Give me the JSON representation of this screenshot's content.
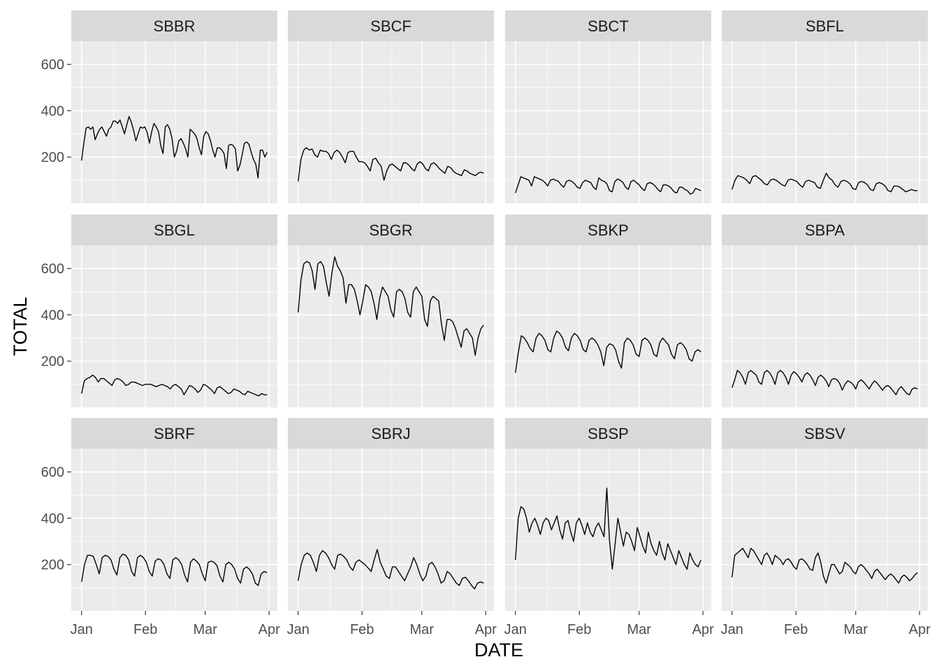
{
  "chart_data": {
    "type": "line",
    "facet_layout": "3 rows x 4 columns",
    "xlabel": "DATE",
    "ylabel": "TOTAL",
    "x_ticks": [
      {
        "date": "2020-01-01",
        "label": "Jan"
      },
      {
        "date": "2020-02-01",
        "label": "Feb"
      },
      {
        "date": "2020-03-01",
        "label": "Mar"
      },
      {
        "date": "2020-04-01",
        "label": "Apr"
      }
    ],
    "x_range": [
      "2019-12-27",
      "2020-04-05"
    ],
    "y_ticks": [
      200,
      400,
      600
    ],
    "ylim": [
      0,
      700
    ],
    "grid": true,
    "panel_background": "#EBEBEB",
    "strip_background": "#D9D9D9",
    "line_color": "#000000",
    "series": [
      {
        "name": "SBBR",
        "x_start": "2020-01-01",
        "x_end": "2020-03-31",
        "values": [
          185,
          260,
          325,
          330,
          320,
          330,
          275,
          300,
          320,
          330,
          310,
          290,
          320,
          330,
          355,
          355,
          345,
          360,
          330,
          300,
          340,
          375,
          350,
          315,
          270,
          300,
          330,
          325,
          330,
          305,
          260,
          310,
          345,
          330,
          310,
          250,
          215,
          330,
          340,
          320,
          280,
          200,
          225,
          270,
          280,
          260,
          235,
          200,
          320,
          310,
          300,
          280,
          240,
          210,
          290,
          310,
          300,
          270,
          230,
          200,
          240,
          240,
          230,
          215,
          150,
          250,
          255,
          250,
          235,
          140,
          165,
          210,
          260,
          265,
          255,
          220,
          190,
          170,
          110,
          230,
          230,
          200,
          220
        ]
      },
      {
        "name": "SBCF",
        "x_start": "2020-01-01",
        "x_end": "2020-03-31",
        "values": [
          95,
          190,
          230,
          240,
          230,
          235,
          210,
          200,
          230,
          225,
          225,
          215,
          190,
          220,
          230,
          220,
          200,
          175,
          220,
          225,
          225,
          200,
          180,
          180,
          175,
          160,
          140,
          190,
          195,
          175,
          160,
          100,
          140,
          165,
          170,
          160,
          150,
          140,
          175,
          175,
          165,
          150,
          140,
          170,
          180,
          170,
          150,
          140,
          170,
          175,
          165,
          150,
          140,
          130,
          160,
          155,
          140,
          130,
          125,
          120,
          145,
          140,
          130,
          125,
          120,
          130,
          135,
          130
        ]
      },
      {
        "name": "SBCT",
        "x_start": "2020-01-01",
        "x_end": "2020-03-31",
        "values": [
          45,
          80,
          115,
          110,
          105,
          100,
          75,
          115,
          110,
          105,
          100,
          90,
          75,
          100,
          105,
          100,
          95,
          80,
          70,
          95,
          100,
          95,
          85,
          70,
          65,
          90,
          100,
          95,
          90,
          70,
          60,
          110,
          100,
          95,
          85,
          55,
          50,
          95,
          105,
          100,
          90,
          70,
          60,
          95,
          100,
          90,
          80,
          65,
          55,
          85,
          90,
          85,
          75,
          60,
          50,
          80,
          80,
          75,
          65,
          50,
          45,
          70,
          70,
          60,
          55,
          40,
          45,
          65,
          60,
          55
        ]
      },
      {
        "name": "SBFL",
        "x_start": "2020-01-01",
        "x_end": "2020-03-31",
        "values": [
          60,
          100,
          120,
          115,
          110,
          100,
          85,
          115,
          120,
          110,
          100,
          85,
          80,
          100,
          105,
          100,
          90,
          80,
          75,
          100,
          105,
          100,
          95,
          80,
          70,
          95,
          100,
          95,
          90,
          70,
          65,
          100,
          130,
          110,
          100,
          80,
          70,
          95,
          100,
          95,
          85,
          65,
          60,
          90,
          95,
          90,
          80,
          60,
          55,
          85,
          90,
          85,
          75,
          55,
          50,
          75,
          75,
          70,
          60,
          50,
          55,
          60,
          55,
          55
        ]
      },
      {
        "name": "SBGL",
        "x_start": "2020-01-01",
        "x_end": "2020-03-31",
        "values": [
          60,
          115,
          125,
          130,
          140,
          130,
          110,
          125,
          125,
          115,
          105,
          95,
          120,
          125,
          120,
          110,
          95,
          100,
          110,
          110,
          105,
          100,
          95,
          100,
          100,
          100,
          95,
          90,
          95,
          100,
          95,
          90,
          80,
          95,
          100,
          90,
          80,
          55,
          75,
          95,
          90,
          80,
          65,
          75,
          100,
          95,
          85,
          75,
          60,
          85,
          90,
          80,
          70,
          60,
          65,
          80,
          75,
          70,
          60,
          55,
          70,
          65,
          60,
          55,
          50,
          60,
          55,
          55
        ]
      },
      {
        "name": "SBGR",
        "x_start": "2020-01-01",
        "x_end": "2020-03-31",
        "values": [
          410,
          550,
          620,
          630,
          625,
          590,
          510,
          620,
          630,
          610,
          540,
          480,
          580,
          650,
          610,
          590,
          560,
          450,
          530,
          530,
          510,
          460,
          400,
          460,
          530,
          520,
          500,
          450,
          380,
          470,
          520,
          500,
          480,
          420,
          390,
          500,
          510,
          500,
          470,
          410,
          390,
          500,
          520,
          500,
          480,
          380,
          350,
          460,
          480,
          470,
          460,
          360,
          290,
          380,
          380,
          370,
          340,
          300,
          260,
          330,
          340,
          320,
          300,
          225,
          300,
          340,
          355
        ]
      },
      {
        "name": "SBKP",
        "x_start": "2020-01-01",
        "x_end": "2020-03-31",
        "values": [
          150,
          240,
          310,
          300,
          280,
          255,
          240,
          300,
          320,
          310,
          290,
          250,
          240,
          300,
          330,
          320,
          300,
          260,
          245,
          300,
          320,
          310,
          290,
          250,
          240,
          290,
          300,
          290,
          270,
          240,
          180,
          260,
          275,
          270,
          250,
          200,
          170,
          280,
          300,
          290,
          270,
          230,
          220,
          290,
          300,
          290,
          270,
          230,
          220,
          280,
          300,
          285,
          270,
          230,
          210,
          270,
          280,
          270,
          250,
          210,
          200,
          240,
          250,
          240
        ]
      },
      {
        "name": "SBPA",
        "x_start": "2020-01-01",
        "x_end": "2020-03-31",
        "values": [
          85,
          120,
          160,
          150,
          130,
          100,
          150,
          160,
          150,
          140,
          110,
          100,
          150,
          160,
          150,
          130,
          100,
          150,
          160,
          150,
          130,
          100,
          140,
          155,
          145,
          130,
          110,
          140,
          150,
          140,
          120,
          95,
          130,
          140,
          130,
          115,
          90,
          120,
          125,
          120,
          105,
          75,
          100,
          115,
          110,
          100,
          80,
          110,
          120,
          110,
          95,
          80,
          100,
          115,
          105,
          90,
          75,
          90,
          95,
          85,
          70,
          55,
          80,
          90,
          75,
          60,
          55,
          80,
          85,
          80
        ]
      },
      {
        "name": "SBRF",
        "x_start": "2020-01-01",
        "x_end": "2020-03-31",
        "values": [
          125,
          200,
          240,
          240,
          235,
          200,
          160,
          230,
          240,
          235,
          220,
          180,
          155,
          230,
          245,
          240,
          220,
          170,
          150,
          230,
          240,
          230,
          210,
          170,
          150,
          215,
          225,
          220,
          200,
          160,
          140,
          220,
          230,
          220,
          200,
          155,
          125,
          210,
          225,
          215,
          200,
          160,
          130,
          210,
          215,
          210,
          195,
          150,
          125,
          200,
          210,
          200,
          180,
          140,
          120,
          180,
          190,
          180,
          160,
          120,
          110,
          160,
          170,
          165
        ]
      },
      {
        "name": "SBRJ",
        "x_start": "2020-01-01",
        "x_end": "2020-03-31",
        "values": [
          130,
          200,
          240,
          250,
          240,
          210,
          170,
          240,
          260,
          250,
          230,
          200,
          180,
          240,
          245,
          235,
          220,
          190,
          175,
          210,
          220,
          210,
          200,
          185,
          170,
          220,
          265,
          210,
          180,
          150,
          140,
          190,
          190,
          170,
          150,
          130,
          160,
          190,
          230,
          200,
          160,
          130,
          150,
          200,
          210,
          190,
          160,
          120,
          130,
          170,
          160,
          140,
          120,
          110,
          140,
          145,
          130,
          110,
          95,
          120,
          125,
          120
        ]
      },
      {
        "name": "SBSP",
        "x_start": "2020-01-01",
        "x_end": "2020-03-31",
        "values": [
          220,
          400,
          450,
          440,
          400,
          340,
          380,
          400,
          370,
          330,
          380,
          400,
          390,
          350,
          380,
          410,
          350,
          310,
          380,
          390,
          340,
          300,
          380,
          400,
          370,
          330,
          380,
          340,
          320,
          360,
          380,
          350,
          320,
          530,
          300,
          180,
          290,
          400,
          340,
          280,
          340,
          330,
          300,
          260,
          360,
          320,
          280,
          250,
          340,
          290,
          260,
          240,
          300,
          250,
          220,
          290,
          260,
          230,
          200,
          260,
          230,
          200,
          180,
          250,
          220,
          200,
          190,
          220
        ]
      },
      {
        "name": "SBSV",
        "x_start": "2020-01-01",
        "x_end": "2020-03-31",
        "values": [
          145,
          240,
          250,
          260,
          270,
          250,
          230,
          270,
          260,
          240,
          220,
          200,
          240,
          250,
          230,
          200,
          240,
          230,
          220,
          200,
          220,
          225,
          210,
          190,
          180,
          220,
          225,
          215,
          200,
          180,
          175,
          230,
          250,
          210,
          150,
          120,
          160,
          200,
          200,
          180,
          160,
          170,
          210,
          200,
          190,
          170,
          160,
          190,
          200,
          190,
          175,
          160,
          140,
          170,
          180,
          165,
          150,
          135,
          150,
          160,
          150,
          135,
          120,
          145,
          155,
          145,
          130,
          140,
          155,
          165
        ]
      }
    ]
  }
}
